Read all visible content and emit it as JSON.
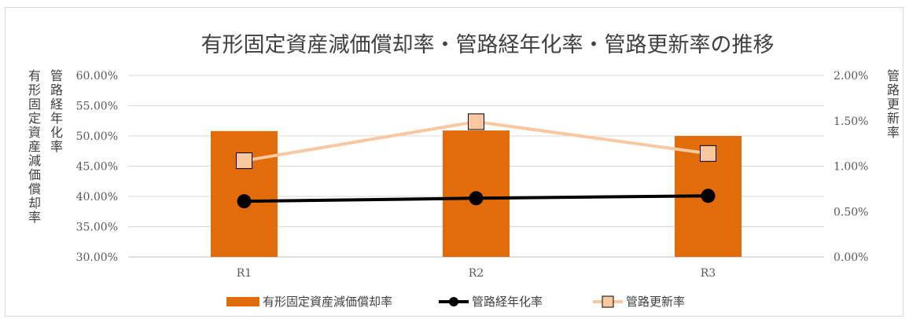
{
  "chart_data": {
    "type": "bar",
    "title": "有形固定資産減価償却率・管路経年化率・管路更新率の推移",
    "categories": [
      "R1",
      "R2",
      "R3"
    ],
    "left_axis": {
      "title_columns": [
        "管路経年化率",
        "有形固定資産減価償却率"
      ],
      "min": 30,
      "max": 60,
      "step": 5,
      "tick_labels": [
        "30.00%",
        "35.00%",
        "40.00%",
        "45.00%",
        "50.00%",
        "55.00%",
        "60.00%"
      ]
    },
    "right_axis": {
      "title": "管路更新率",
      "min": 0,
      "max": 2,
      "step": 0.5,
      "tick_labels": [
        "0.00%",
        "0.50%",
        "1.00%",
        "1.50%",
        "2.00%"
      ]
    },
    "grid": true,
    "legend_position": "bottom",
    "series": [
      {
        "name": "有形固定資産減価償却率",
        "type": "bar",
        "axis": "left",
        "color": "#E36C0A",
        "values": [
          50.8,
          50.9,
          50.0
        ]
      },
      {
        "name": "管路経年化率",
        "type": "line",
        "axis": "left",
        "color": "#000000",
        "marker": "circle",
        "values": [
          39.2,
          39.7,
          40.1
        ]
      },
      {
        "name": "管路更新率",
        "type": "line",
        "axis": "right",
        "color": "#F9C8A0",
        "marker": "square",
        "values": [
          1.06,
          1.49,
          1.14
        ]
      }
    ]
  }
}
